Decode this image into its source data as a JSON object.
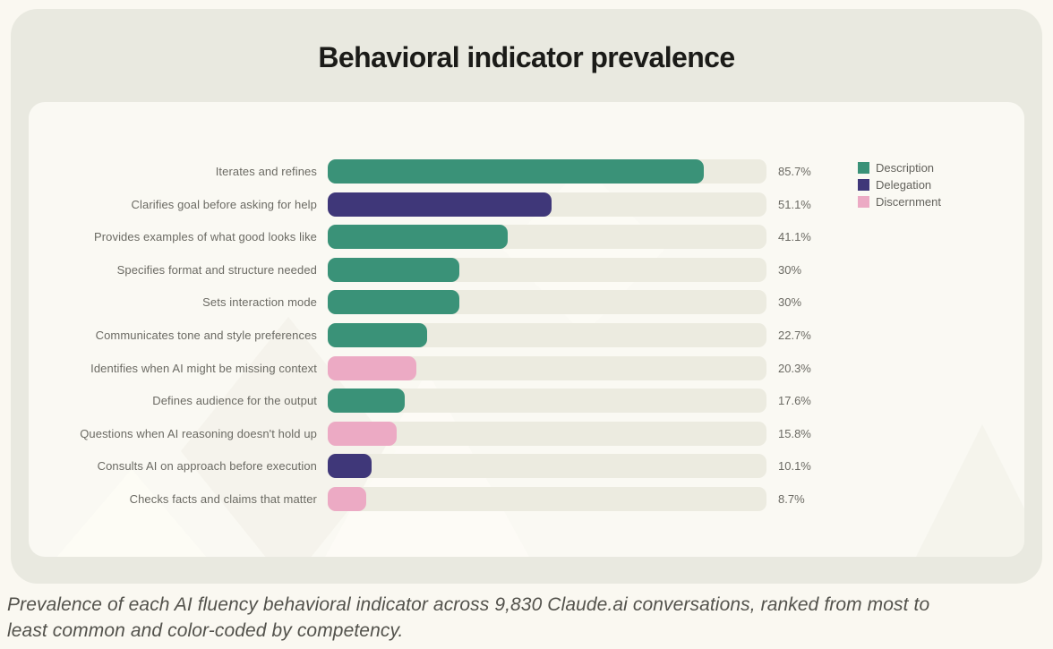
{
  "header": {
    "title": "Behavioral indicator prevalence"
  },
  "caption": {
    "text": "Prevalence of each AI fluency behavioral indicator across 9,830 Claude.ai conversations, ranked from most to least common and color-coded by competency."
  },
  "chart_data": {
    "type": "bar",
    "orientation": "horizontal",
    "title": "Behavioral indicator prevalence",
    "unit": "%",
    "x_max": 100,
    "grid": false,
    "legend_position": "top-right",
    "track_color": "#ecebe0",
    "legend": [
      {
        "label": "Description",
        "color": "#3a9278"
      },
      {
        "label": "Delegation",
        "color": "#3f3779"
      },
      {
        "label": "Discernment",
        "color": "#ecaac4"
      }
    ],
    "rows": [
      {
        "label": "Iterates and refines",
        "value": 85.7,
        "display": "85.7%",
        "competency": "Description"
      },
      {
        "label": "Clarifies goal before asking for help",
        "value": 51.1,
        "display": "51.1%",
        "competency": "Delegation"
      },
      {
        "label": "Provides examples of what good looks like",
        "value": 41.1,
        "display": "41.1%",
        "competency": "Description"
      },
      {
        "label": "Specifies format and structure needed",
        "value": 30,
        "display": "30%",
        "competency": "Description"
      },
      {
        "label": "Sets interaction mode",
        "value": 30,
        "display": "30%",
        "competency": "Description"
      },
      {
        "label": "Communicates tone and style preferences",
        "value": 22.7,
        "display": "22.7%",
        "competency": "Description"
      },
      {
        "label": "Identifies when AI might be missing context",
        "value": 20.3,
        "display": "20.3%",
        "competency": "Discernment"
      },
      {
        "label": "Defines audience for the output",
        "value": 17.6,
        "display": "17.6%",
        "competency": "Description"
      },
      {
        "label": "Questions when AI reasoning doesn't hold up",
        "value": 15.8,
        "display": "15.8%",
        "competency": "Discernment"
      },
      {
        "label": "Consults AI on approach before execution",
        "value": 10.1,
        "display": "10.1%",
        "competency": "Delegation"
      },
      {
        "label": "Checks facts and claims that matter",
        "value": 8.7,
        "display": "8.7%",
        "competency": "Discernment"
      }
    ]
  }
}
